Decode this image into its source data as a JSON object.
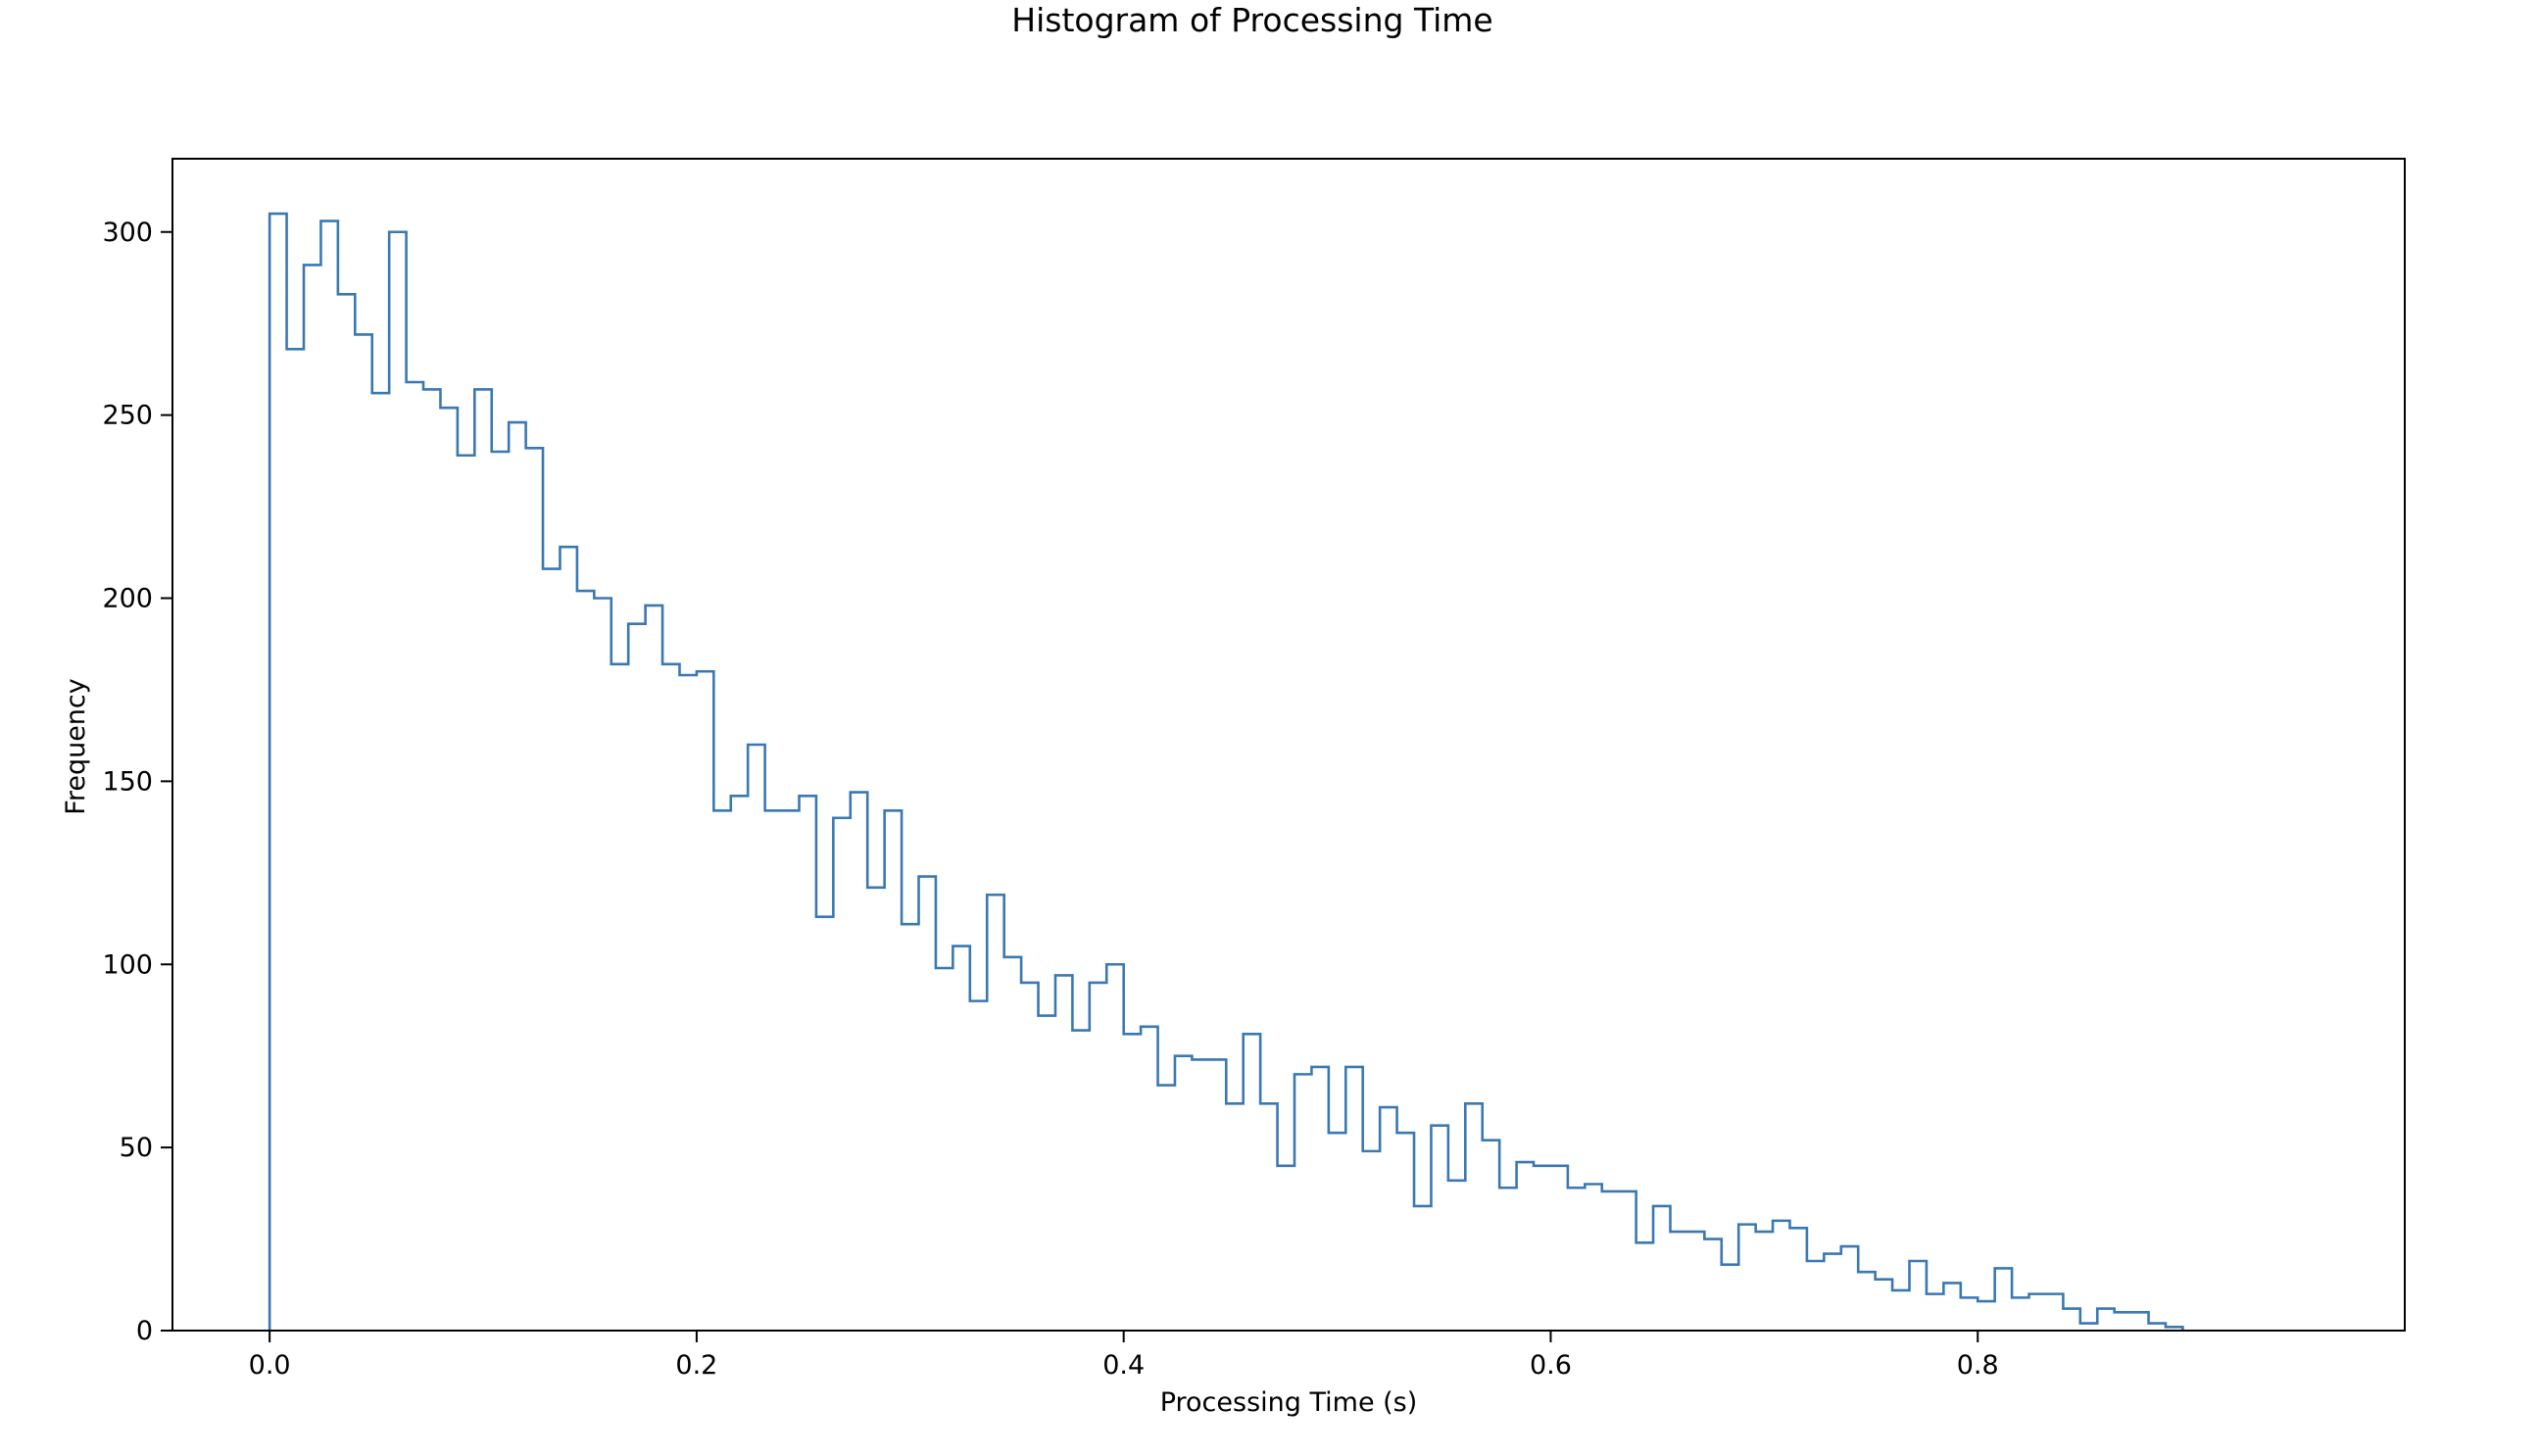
{
  "colors": {
    "series": "#3a78b2",
    "axes": "#000000",
    "background": "#ffffff"
  },
  "chart_data": {
    "type": "histogram",
    "histtype": "step",
    "title": "Histogram of Processing Time",
    "xlabel": "Processing Time (s)",
    "ylabel": "Frequency",
    "xlim": [
      -0.0455,
      1.0
    ],
    "ylim": [
      0,
      320
    ],
    "xticks": [
      0.0,
      0.2,
      0.4,
      0.6,
      0.8
    ],
    "xtick_labels": [
      "0.0",
      "0.2",
      "0.4",
      "0.6",
      "0.8"
    ],
    "yticks": [
      0,
      50,
      100,
      150,
      200,
      250,
      300
    ],
    "ytick_labels": [
      "0",
      "50",
      "100",
      "150",
      "200",
      "250",
      "300"
    ],
    "grid": false,
    "bin_start": 0.0,
    "bin_width": 0.008,
    "counts": [
      305,
      268,
      291,
      303,
      283,
      272,
      256,
      300,
      259,
      257,
      252,
      239,
      257,
      240,
      248,
      241,
      208,
      214,
      202,
      200,
      182,
      193,
      198,
      182,
      179,
      180,
      142,
      146,
      160,
      142,
      142,
      146,
      113,
      140,
      147,
      121,
      142,
      111,
      124,
      99,
      105,
      90,
      119,
      102,
      95,
      86,
      97,
      82,
      95,
      100,
      81,
      83,
      67,
      75,
      74,
      74,
      62,
      81,
      62,
      45,
      70,
      72,
      54,
      72,
      49,
      61,
      54,
      34,
      56,
      41,
      62,
      52,
      39,
      46,
      45,
      45,
      39,
      40,
      38,
      38,
      24,
      34,
      27,
      27,
      25,
      18,
      29,
      27,
      30,
      28,
      19,
      21,
      23,
      16,
      14,
      11,
      19,
      10,
      13,
      9,
      8,
      17,
      9,
      10,
      10,
      6,
      2,
      6,
      5,
      5,
      2,
      1
    ]
  }
}
